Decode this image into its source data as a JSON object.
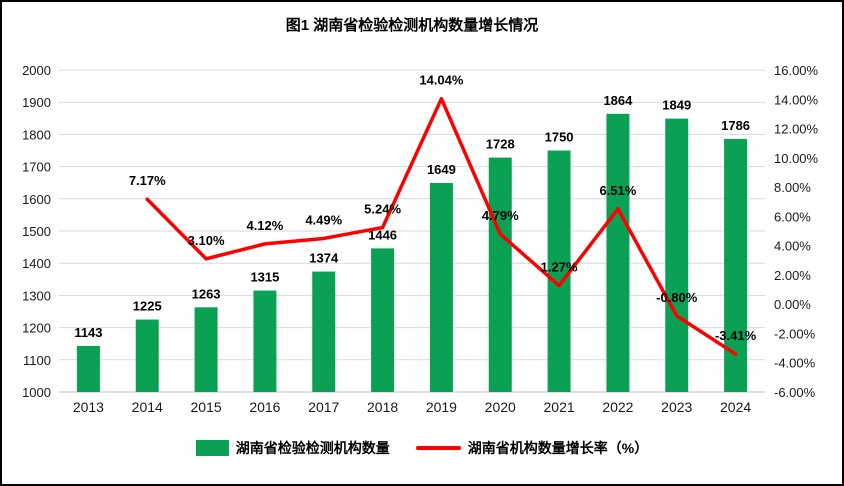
{
  "title": "图1 湖南省检验检测机构数量增长情况",
  "chart_data": {
    "type": "bar",
    "subtype": "combo-bar-line-dual-axis",
    "title": "图1 湖南省检验检测机构数量增长情况",
    "categories": [
      "2013",
      "2014",
      "2015",
      "2016",
      "2017",
      "2018",
      "2019",
      "2020",
      "2021",
      "2022",
      "2023",
      "2024"
    ],
    "series": [
      {
        "name": "湖南省检验检测机构数量",
        "type": "bar",
        "axis": "left",
        "color": "#0ba155",
        "values": [
          1143,
          1225,
          1263,
          1315,
          1374,
          1446,
          1649,
          1728,
          1750,
          1864,
          1849,
          1786
        ],
        "labels": [
          "1143",
          "1225",
          "1263",
          "1315",
          "1374",
          "1446",
          "1649",
          "1728",
          "1750",
          "1864",
          "1849",
          "1786"
        ]
      },
      {
        "name": "湖南省机构数量增长率（%）",
        "type": "line",
        "axis": "right",
        "color": "#fe0000",
        "values": [
          null,
          7.17,
          3.1,
          4.12,
          4.49,
          5.24,
          14.04,
          4.79,
          1.27,
          6.51,
          -0.8,
          -3.41
        ],
        "labels": [
          null,
          "7.17%",
          "3.10%",
          "4.12%",
          "4.49%",
          "5.24%",
          "14.04%",
          "4.79%",
          "1.27%",
          "6.51%",
          "-0.80%",
          "-3.41%"
        ]
      }
    ],
    "left_axis": {
      "min": 1000,
      "max": 2000,
      "step": 100,
      "tick_values": [
        2000,
        1900,
        1800,
        1700,
        1600,
        1500,
        1400,
        1300,
        1200,
        1100,
        1000
      ],
      "tick_labels": [
        "2000",
        "1900",
        "1800",
        "1700",
        "1600",
        "1500",
        "1400",
        "1300",
        "1200",
        "1100",
        "1000"
      ]
    },
    "right_axis": {
      "min": -6,
      "max": 16,
      "step": 2,
      "tick_values": [
        16,
        14,
        12,
        10,
        8,
        6,
        4,
        2,
        0,
        -2,
        -4,
        -6
      ],
      "tick_labels": [
        "16.00%",
        "14.00%",
        "12.00%",
        "10.00%",
        "8.00%",
        "6.00%",
        "4.00%",
        "2.00%",
        "0.00%",
        "-2.00%",
        "-4.00%",
        "-6.00%"
      ]
    },
    "grid": "horizontal",
    "legend_position": "bottom"
  },
  "legend": [
    {
      "label": "湖南省检验检测机构数量",
      "color": "#0ba155",
      "type": "bar"
    },
    {
      "label": "湖南省机构数量增长率（%）",
      "color": "#fe0000",
      "type": "line"
    }
  ]
}
